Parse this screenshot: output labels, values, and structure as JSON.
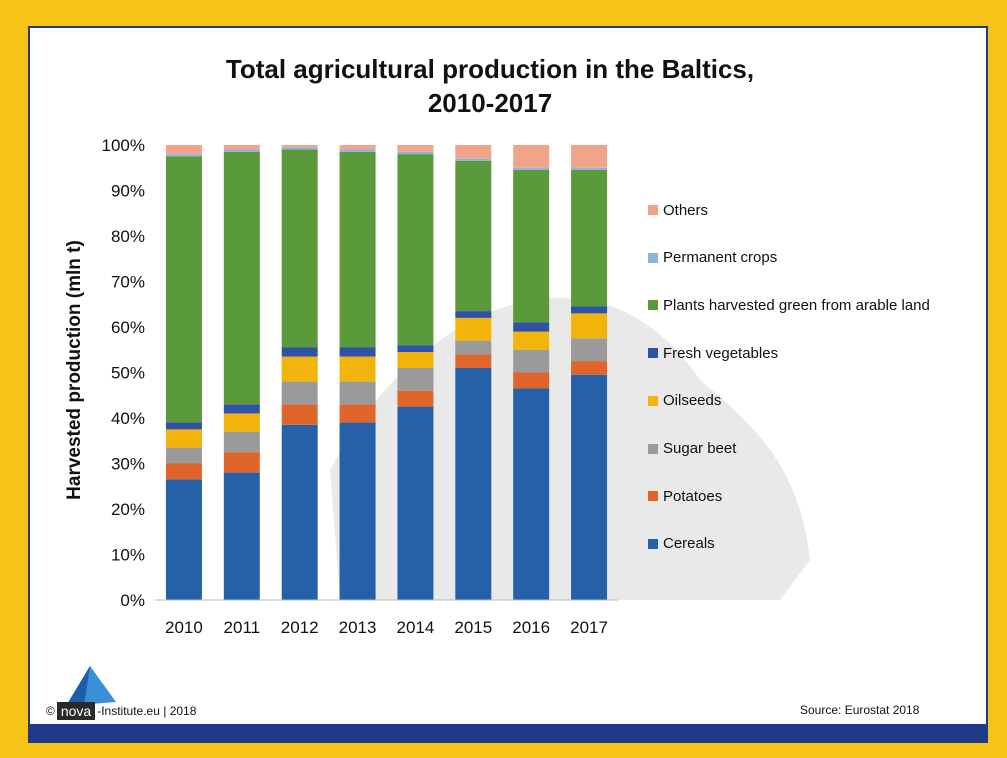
{
  "footer": {
    "copyright": "©",
    "logo_text": "nova",
    "institute": "-Institute.eu | 2018",
    "source": "Source: Eurostat 2018"
  },
  "colors": {
    "background": "#f5c417",
    "panel_border": "#1f3a8a"
  },
  "chart_data": {
    "type": "bar",
    "stacked": true,
    "title": "Total agricultural production in the Baltics, 2010-2017",
    "title_lines": [
      "Total agricultural production in the Baltics,",
      "2010-2017"
    ],
    "xlabel": "",
    "ylabel": "Harvested production (mln t)",
    "ylim": [
      0,
      100
    ],
    "yticks": [
      "0%",
      "10%",
      "20%",
      "30%",
      "40%",
      "50%",
      "60%",
      "70%",
      "80%",
      "90%",
      "100%"
    ],
    "categories": [
      "2010",
      "2011",
      "2012",
      "2013",
      "2014",
      "2015",
      "2016",
      "2017"
    ],
    "legend_position": "right",
    "series": [
      {
        "name": "Cereals",
        "color": "#2660a8",
        "values": [
          26.5,
          28,
          38.5,
          39,
          42.5,
          51,
          46.5,
          49.5
        ]
      },
      {
        "name": "Potatoes",
        "color": "#e0652b",
        "values": [
          3.5,
          4.5,
          4.5,
          4,
          3.5,
          3,
          3.5,
          3
        ]
      },
      {
        "name": "Sugar beet",
        "color": "#9a9a9a",
        "values": [
          3.5,
          4.5,
          5,
          5,
          5,
          3,
          5,
          5
        ]
      },
      {
        "name": "Oilseeds",
        "color": "#f2b40b",
        "values": [
          4,
          4,
          5.5,
          5.5,
          3.5,
          5,
          4,
          5.5
        ]
      },
      {
        "name": "Fresh vegetables",
        "color": "#2d52a8",
        "values": [
          1.5,
          2,
          2,
          2,
          1.5,
          1.5,
          2,
          1.5
        ]
      },
      {
        "name": "Plants harvested green from arable land",
        "color": "#5a9a3b",
        "values": [
          58.5,
          55.5,
          43.5,
          43,
          42,
          33,
          33.5,
          30
        ]
      },
      {
        "name": "Permanent crops",
        "color": "#8db4df",
        "values": [
          0.5,
          0.5,
          0.5,
          0.5,
          0.5,
          0.5,
          0.5,
          0.5
        ]
      },
      {
        "name": "Others",
        "color": "#f2a48a",
        "values": [
          2,
          1,
          0.5,
          1,
          1.5,
          3,
          5,
          5
        ]
      }
    ]
  }
}
